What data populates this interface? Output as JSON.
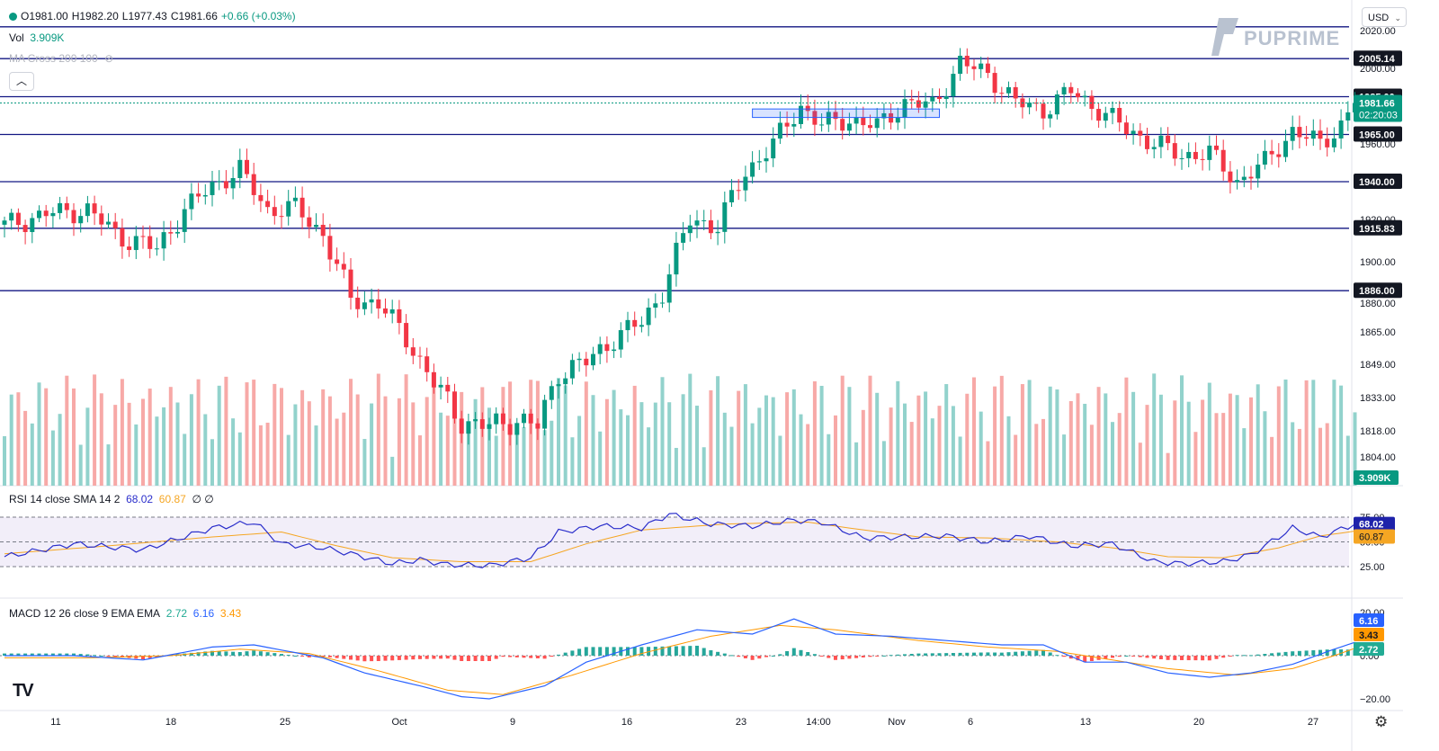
{
  "header": {
    "ohlc": {
      "open": "O1981.00",
      "high": "H1982.20",
      "low": "L1977.43",
      "close": "C1981.66",
      "change": "+0.66 (+0.03%)"
    },
    "vol_label": "Vol",
    "vol_value": "3.909K",
    "ma_label": "MA Cross 200 100",
    "currency": "USD",
    "collapse_icon": "chevron-up-icon"
  },
  "brand": {
    "name": "PUPRIME"
  },
  "chart_data": {
    "type": "candlestick",
    "x_labels": [
      "11",
      "18",
      "25",
      "Oct",
      "9",
      "16",
      "23",
      "14:00",
      "Nov",
      "6",
      "13",
      "20",
      "27"
    ],
    "price_ticks": [
      2020,
      2000,
      1980,
      1960,
      1940,
      1920,
      1900,
      1880,
      1865,
      1849,
      1833,
      1818,
      1804
    ],
    "price_tick_labels": [
      "2020.00",
      "2000.00",
      "1980.00",
      "1960.00",
      "1940.00",
      "1920.00",
      "1900.00",
      "1880.00",
      "1865.00",
      "1849.00",
      "1833.00",
      "1818.00",
      "1804.00"
    ],
    "horizontal_levels": [
      {
        "label": "2005.14",
        "value": 2005.14
      },
      {
        "label": "1985.00",
        "value": 1985.0
      },
      {
        "label": "1965.00",
        "value": 1965.0
      },
      {
        "label": "1940.00",
        "value": 1940.0
      },
      {
        "label": "1915.83",
        "value": 1915.83
      },
      {
        "label": "1886.00",
        "value": 1886.0
      }
    ],
    "current_price": {
      "label": "1981.66",
      "countdown": "02:20:03",
      "value": 1981.66
    },
    "volume_label": "3.909K",
    "ohlc_anchors": [
      {
        "i": 0,
        "c": 1917
      },
      {
        "i": 6,
        "c": 1923
      },
      {
        "i": 12,
        "c": 1925
      },
      {
        "i": 16,
        "c": 1913
      },
      {
        "i": 22,
        "c": 1906
      },
      {
        "i": 26,
        "c": 1925
      },
      {
        "i": 30,
        "c": 1938
      },
      {
        "i": 34,
        "c": 1946
      },
      {
        "i": 38,
        "c": 1925
      },
      {
        "i": 42,
        "c": 1926
      },
      {
        "i": 46,
        "c": 1913
      },
      {
        "i": 50,
        "c": 1882
      },
      {
        "i": 54,
        "c": 1880
      },
      {
        "i": 58,
        "c": 1862
      },
      {
        "i": 62,
        "c": 1840
      },
      {
        "i": 66,
        "c": 1822
      },
      {
        "i": 70,
        "c": 1820
      },
      {
        "i": 74,
        "c": 1823
      },
      {
        "i": 77,
        "c": 1820
      },
      {
        "i": 80,
        "c": 1845
      },
      {
        "i": 84,
        "c": 1850
      },
      {
        "i": 88,
        "c": 1862
      },
      {
        "i": 92,
        "c": 1870
      },
      {
        "i": 95,
        "c": 1886
      },
      {
        "i": 99,
        "c": 1920
      },
      {
        "i": 103,
        "c": 1917
      },
      {
        "i": 107,
        "c": 1945
      },
      {
        "i": 111,
        "c": 1960
      },
      {
        "i": 115,
        "c": 1980
      },
      {
        "i": 118,
        "c": 1970
      },
      {
        "i": 122,
        "c": 1973
      },
      {
        "i": 126,
        "c": 1969
      },
      {
        "i": 130,
        "c": 1982
      },
      {
        "i": 134,
        "c": 1980
      },
      {
        "i": 138,
        "c": 2003
      },
      {
        "i": 142,
        "c": 1997
      },
      {
        "i": 146,
        "c": 1982
      },
      {
        "i": 150,
        "c": 1978
      },
      {
        "i": 154,
        "c": 1988
      },
      {
        "i": 158,
        "c": 1978
      },
      {
        "i": 162,
        "c": 1968
      },
      {
        "i": 166,
        "c": 1960
      },
      {
        "i": 170,
        "c": 1954
      },
      {
        "i": 174,
        "c": 1955
      },
      {
        "i": 178,
        "c": 1940
      },
      {
        "i": 182,
        "c": 1950
      },
      {
        "i": 186,
        "c": 1967
      },
      {
        "i": 190,
        "c": 1960
      },
      {
        "i": 193,
        "c": 1970
      },
      {
        "i": 195,
        "c": 1981.66
      }
    ],
    "rsi": {
      "label": "RSI 14 close SMA 14 2",
      "value": "68.02",
      "sma": "60.87",
      "extra": "∅ ∅",
      "levels": [
        75,
        50,
        25
      ],
      "tick_labels": [
        "75.00",
        "50.00",
        "25.00"
      ],
      "anchors": [
        [
          0,
          35
        ],
        [
          10,
          48
        ],
        [
          20,
          42
        ],
        [
          30,
          64
        ],
        [
          36,
          70
        ],
        [
          40,
          48
        ],
        [
          46,
          44
        ],
        [
          50,
          38
        ],
        [
          56,
          28
        ],
        [
          60,
          32
        ],
        [
          64,
          27
        ],
        [
          70,
          26
        ],
        [
          76,
          34
        ],
        [
          80,
          60
        ],
        [
          86,
          66
        ],
        [
          92,
          64
        ],
        [
          96,
          78
        ],
        [
          102,
          68
        ],
        [
          108,
          66
        ],
        [
          114,
          72
        ],
        [
          118,
          70
        ],
        [
          124,
          54
        ],
        [
          130,
          55
        ],
        [
          136,
          56
        ],
        [
          142,
          50
        ],
        [
          148,
          56
        ],
        [
          154,
          46
        ],
        [
          160,
          48
        ],
        [
          166,
          30
        ],
        [
          170,
          28
        ],
        [
          176,
          30
        ],
        [
          180,
          37
        ],
        [
          186,
          64
        ],
        [
          190,
          55
        ],
        [
          195,
          68.02
        ]
      ],
      "sma_anchors": [
        [
          0,
          38
        ],
        [
          15,
          46
        ],
        [
          30,
          55
        ],
        [
          40,
          60
        ],
        [
          48,
          46
        ],
        [
          56,
          34
        ],
        [
          66,
          30
        ],
        [
          76,
          30
        ],
        [
          84,
          48
        ],
        [
          92,
          62
        ],
        [
          104,
          68
        ],
        [
          116,
          70
        ],
        [
          122,
          64
        ],
        [
          132,
          55
        ],
        [
          142,
          54
        ],
        [
          152,
          50
        ],
        [
          160,
          44
        ],
        [
          168,
          35
        ],
        [
          176,
          34
        ],
        [
          184,
          44
        ],
        [
          190,
          56
        ],
        [
          195,
          60.87
        ]
      ]
    },
    "macd": {
      "label": "MACD 12 26 close 9 EMA EMA",
      "hist": "2.72",
      "macd": "6.16",
      "signal": "3.43",
      "tick_labels": [
        "20.00",
        "0.00",
        "−20.00"
      ],
      "ticks": [
        20,
        0,
        -20
      ],
      "macd_anchors": [
        [
          0,
          0
        ],
        [
          10,
          0
        ],
        [
          20,
          -2
        ],
        [
          30,
          4
        ],
        [
          36,
          5
        ],
        [
          46,
          -1
        ],
        [
          52,
          -8
        ],
        [
          60,
          -14
        ],
        [
          66,
          -19
        ],
        [
          70,
          -20
        ],
        [
          78,
          -14
        ],
        [
          84,
          -3
        ],
        [
          92,
          5
        ],
        [
          100,
          12
        ],
        [
          108,
          10
        ],
        [
          114,
          17
        ],
        [
          120,
          10
        ],
        [
          128,
          9
        ],
        [
          136,
          7
        ],
        [
          144,
          5
        ],
        [
          150,
          5
        ],
        [
          156,
          -3
        ],
        [
          162,
          -3
        ],
        [
          168,
          -8
        ],
        [
          174,
          -10
        ],
        [
          180,
          -8
        ],
        [
          186,
          -4
        ],
        [
          192,
          3
        ],
        [
          195,
          6.16
        ]
      ],
      "signal_anchors": [
        [
          0,
          -1
        ],
        [
          12,
          -1
        ],
        [
          24,
          0
        ],
        [
          34,
          3
        ],
        [
          44,
          1
        ],
        [
          54,
          -7
        ],
        [
          64,
          -16
        ],
        [
          72,
          -18
        ],
        [
          82,
          -9
        ],
        [
          92,
          1
        ],
        [
          102,
          9
        ],
        [
          112,
          14
        ],
        [
          120,
          12
        ],
        [
          132,
          7
        ],
        [
          142,
          4
        ],
        [
          152,
          2
        ],
        [
          160,
          -2
        ],
        [
          168,
          -6
        ],
        [
          178,
          -9
        ],
        [
          186,
          -6
        ],
        [
          192,
          0
        ],
        [
          195,
          3.43
        ]
      ]
    },
    "palette": {
      "up": "#089981",
      "down": "#f23645",
      "level": "#131783",
      "rsi": "#2a2ecb",
      "rsi_sma": "#f5a623",
      "macd": "#2962ff",
      "signal": "#ff9800"
    }
  }
}
